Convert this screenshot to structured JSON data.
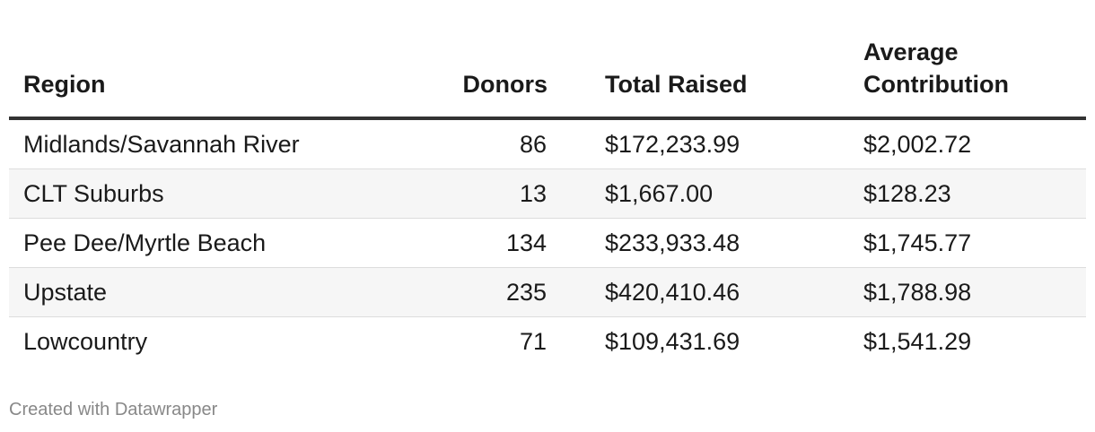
{
  "chart_data": {
    "type": "table",
    "columns": [
      "Region",
      "Donors",
      "Total Raised",
      "Average Contribution"
    ],
    "rows": [
      [
        "Midlands/Savannah River",
        "86",
        "$172,233.99",
        "$2,002.72"
      ],
      [
        "CLT Suburbs",
        "13",
        "$1,667.00",
        "$128.23"
      ],
      [
        "Pee Dee/Myrtle Beach",
        "134",
        "$233,933.48",
        "$1,745.77"
      ],
      [
        "Upstate",
        "235",
        "$420,410.46",
        "$1,788.98"
      ],
      [
        "Lowcountry",
        "71",
        "$109,431.69",
        "$1,541.29"
      ]
    ]
  },
  "header": {
    "avg_line1": "Average",
    "avg_line2": "Contribution"
  },
  "footer": {
    "credit": "Created with Datawrapper"
  },
  "colors": {
    "header_rule": "#333333",
    "row_stripe": "#f6f6f6",
    "row_divider": "#dddddd",
    "credit_text": "#888888"
  }
}
